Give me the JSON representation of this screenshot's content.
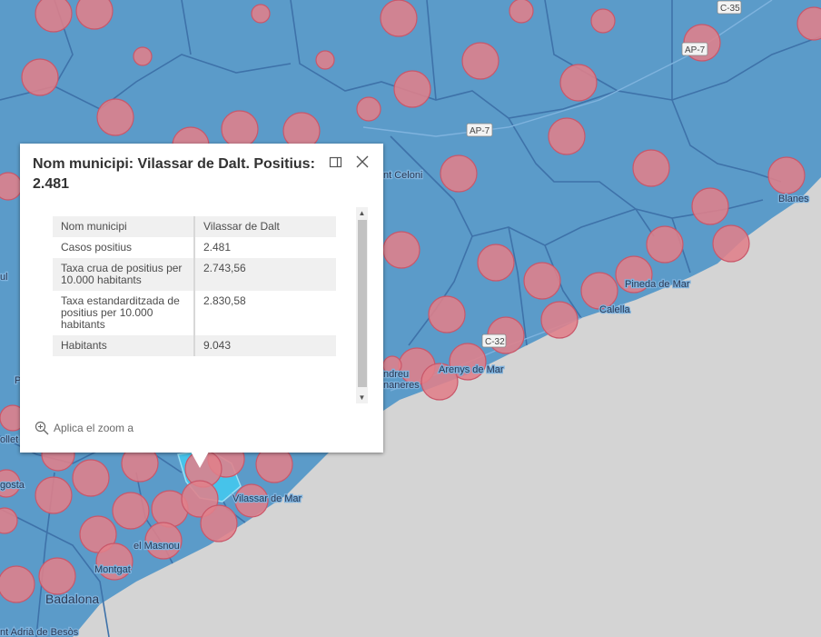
{
  "map": {
    "places": {
      "badalona": "Badalona",
      "montgat": "Montgat",
      "el_masnou": "el Masnou",
      "vilassar_de_mar": "Vilassar de Mar",
      "arenys_de_mar": "Arenys de Mar",
      "calella": "Calella",
      "pineda_de_mar": "Pineda de Mar",
      "blanes": "Blanes",
      "sant_celoni": "nt Celoni",
      "sant_andreu": "ndreu",
      "llavaneres": "naneres",
      "sant_adria": "nt Adrià de Besòs",
      "rollet": "ollet",
      "gosta": "gosta",
      "ul": "ul",
      "p": "P"
    },
    "roads": {
      "c35": "C-35",
      "ap7_top": "AP-7",
      "ap7_mid": "AP-7",
      "c32": "C-32"
    },
    "colors": {
      "sea": "#d4d4d4",
      "land": "#5b9bc9",
      "border": "#3e72a9",
      "circle_fill": "#e07f8a",
      "circle_stroke": "#c9576a",
      "highlight": "#46c3ea"
    }
  },
  "popup": {
    "title": "Nom municipi: Vilassar de Dalt. Positius: 2.481",
    "dock_icon": "dock-icon",
    "close_icon": "close-icon",
    "rows": [
      {
        "label": "Nom municipi",
        "value": "Vilassar de Dalt"
      },
      {
        "label": "Casos positius",
        "value": "2.481"
      },
      {
        "label": "Taxa crua de positius per 10.000 habitants",
        "value": "2.743,56"
      },
      {
        "label": "Taxa estandarditzada de positius per 10.000 habitants",
        "value": "2.830,58"
      },
      {
        "label": "Habitants",
        "value": "9.043"
      }
    ],
    "zoom_label": "Aplica el zoom a"
  }
}
